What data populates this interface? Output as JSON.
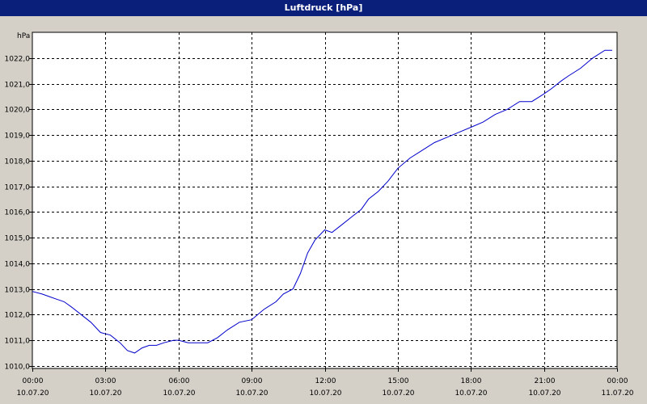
{
  "window": {
    "title": "Luftdruck [hPa]"
  },
  "chart_data": {
    "type": "line",
    "title": "Luftdruck [hPa]",
    "ylabel": "hPa",
    "ylim": [
      1009.9,
      1023.0
    ],
    "xlim_hours": [
      0,
      24
    ],
    "grid": true,
    "yticks": [
      1010.0,
      1011.0,
      1012.0,
      1013.0,
      1014.0,
      1015.0,
      1016.0,
      1017.0,
      1018.0,
      1019.0,
      1020.0,
      1021.0,
      1022.0
    ],
    "ytick_labels": [
      "1010,0",
      "1011,0",
      "1012,0",
      "1013,0",
      "1014,0",
      "1015,0",
      "1016,0",
      "1017,0",
      "1018,0",
      "1019,0",
      "1020,0",
      "1021,0",
      "1022,0"
    ],
    "xticks": [
      {
        "time": "00:00",
        "date": "10.07.20"
      },
      {
        "time": "03:00",
        "date": "10.07.20"
      },
      {
        "time": "06:00",
        "date": "10.07.20"
      },
      {
        "time": "09:00",
        "date": "10.07.20"
      },
      {
        "time": "12:00",
        "date": "10.07.20"
      },
      {
        "time": "15:00",
        "date": "10.07.20"
      },
      {
        "time": "18:00",
        "date": "10.07.20"
      },
      {
        "time": "21:00",
        "date": "10.07.20"
      },
      {
        "time": "00:00",
        "date": "11.07.20"
      }
    ],
    "series": [
      {
        "color": "#0000cc",
        "x": [
          0.0,
          0.4,
          0.7,
          1.0,
          1.3,
          1.6,
          2.0,
          2.4,
          2.8,
          3.2,
          3.6,
          3.9,
          4.2,
          4.5,
          4.8,
          5.1,
          5.4,
          5.8,
          6.0,
          6.4,
          6.8,
          7.2,
          7.6,
          8.0,
          8.5,
          9.0,
          9.5,
          10.0,
          10.3,
          10.7,
          11.0,
          11.3,
          11.6,
          12.0,
          12.3,
          12.7,
          13.1,
          13.5,
          13.8,
          14.2,
          14.6,
          15.0,
          15.5,
          16.0,
          16.5,
          17.0,
          17.5,
          18.0,
          18.5,
          19.0,
          19.5,
          20.0,
          20.5,
          21.0,
          21.3,
          21.7,
          22.0,
          22.5,
          23.0,
          23.5,
          23.8
        ],
        "y": [
          1012.9,
          1012.8,
          1012.7,
          1012.6,
          1012.5,
          1012.3,
          1012.0,
          1011.7,
          1011.3,
          1011.2,
          1010.9,
          1010.6,
          1010.5,
          1010.7,
          1010.8,
          1010.8,
          1010.9,
          1011.0,
          1011.0,
          1010.9,
          1010.9,
          1010.9,
          1011.1,
          1011.4,
          1011.7,
          1011.8,
          1012.2,
          1012.5,
          1012.8,
          1013.0,
          1013.6,
          1014.4,
          1014.9,
          1015.3,
          1015.2,
          1015.5,
          1015.8,
          1016.1,
          1016.5,
          1016.8,
          1017.2,
          1017.7,
          1018.1,
          1018.4,
          1018.7,
          1018.9,
          1019.1,
          1019.3,
          1019.5,
          1019.8,
          1020.0,
          1020.3,
          1020.3,
          1020.6,
          1020.8,
          1021.1,
          1021.3,
          1021.6,
          1022.0,
          1022.3,
          1022.3
        ]
      }
    ]
  }
}
